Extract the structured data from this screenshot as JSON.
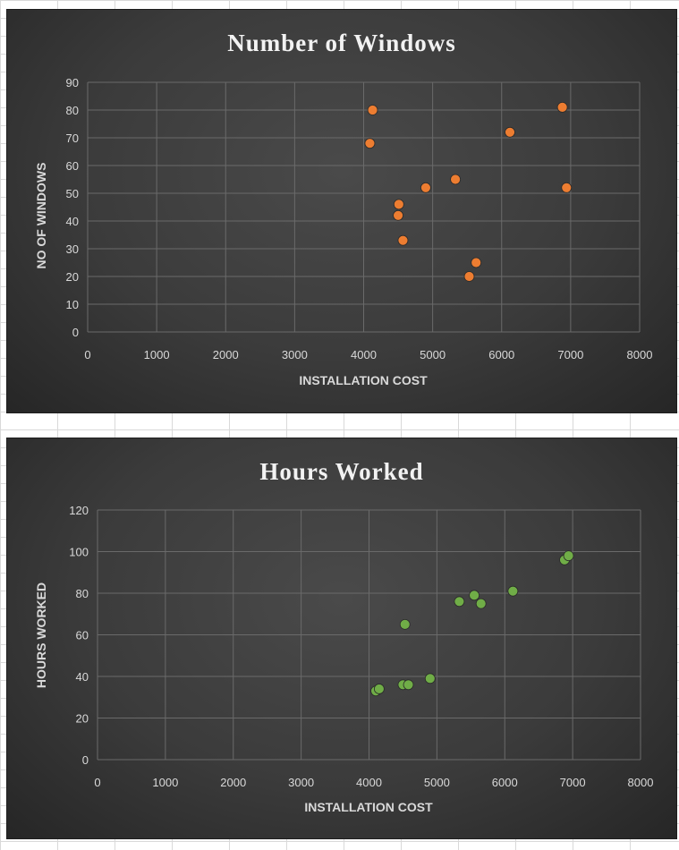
{
  "chart_data": [
    {
      "type": "scatter",
      "title": "Number of Windows",
      "xlabel": "INSTALLATION COST",
      "ylabel": "NO OF WINDOWS",
      "xlim": [
        0,
        8000
      ],
      "ylim": [
        0,
        90
      ],
      "xticks": [
        0,
        1000,
        2000,
        3000,
        4000,
        5000,
        6000,
        7000,
        8000
      ],
      "yticks": [
        0,
        10,
        20,
        30,
        40,
        50,
        60,
        70,
        80,
        90
      ],
      "grid": true,
      "color": "#ed7d31",
      "points": [
        {
          "x": 4130,
          "y": 80
        },
        {
          "x": 4090,
          "y": 68
        },
        {
          "x": 4510,
          "y": 46
        },
        {
          "x": 4500,
          "y": 42
        },
        {
          "x": 4570,
          "y": 33
        },
        {
          "x": 4900,
          "y": 52
        },
        {
          "x": 5330,
          "y": 55
        },
        {
          "x": 5530,
          "y": 20
        },
        {
          "x": 5630,
          "y": 25
        },
        {
          "x": 6120,
          "y": 72
        },
        {
          "x": 6880,
          "y": 81
        },
        {
          "x": 6940,
          "y": 52
        }
      ]
    },
    {
      "type": "scatter",
      "title": "Hours Worked",
      "xlabel": "INSTALLATION COST",
      "ylabel": "HOURS WORKED",
      "xlim": [
        0,
        8000
      ],
      "ylim": [
        0,
        120
      ],
      "xticks": [
        0,
        1000,
        2000,
        3000,
        4000,
        5000,
        6000,
        7000,
        8000
      ],
      "yticks": [
        0,
        20,
        40,
        60,
        80,
        100,
        120
      ],
      "grid": true,
      "color": "#70ad47",
      "points": [
        {
          "x": 4100,
          "y": 33
        },
        {
          "x": 4150,
          "y": 34
        },
        {
          "x": 4500,
          "y": 36
        },
        {
          "x": 4580,
          "y": 36
        },
        {
          "x": 4530,
          "y": 65
        },
        {
          "x": 4900,
          "y": 39
        },
        {
          "x": 5330,
          "y": 76
        },
        {
          "x": 5550,
          "y": 79
        },
        {
          "x": 5650,
          "y": 75
        },
        {
          "x": 6120,
          "y": 81
        },
        {
          "x": 6880,
          "y": 96
        },
        {
          "x": 6940,
          "y": 98
        }
      ]
    }
  ]
}
